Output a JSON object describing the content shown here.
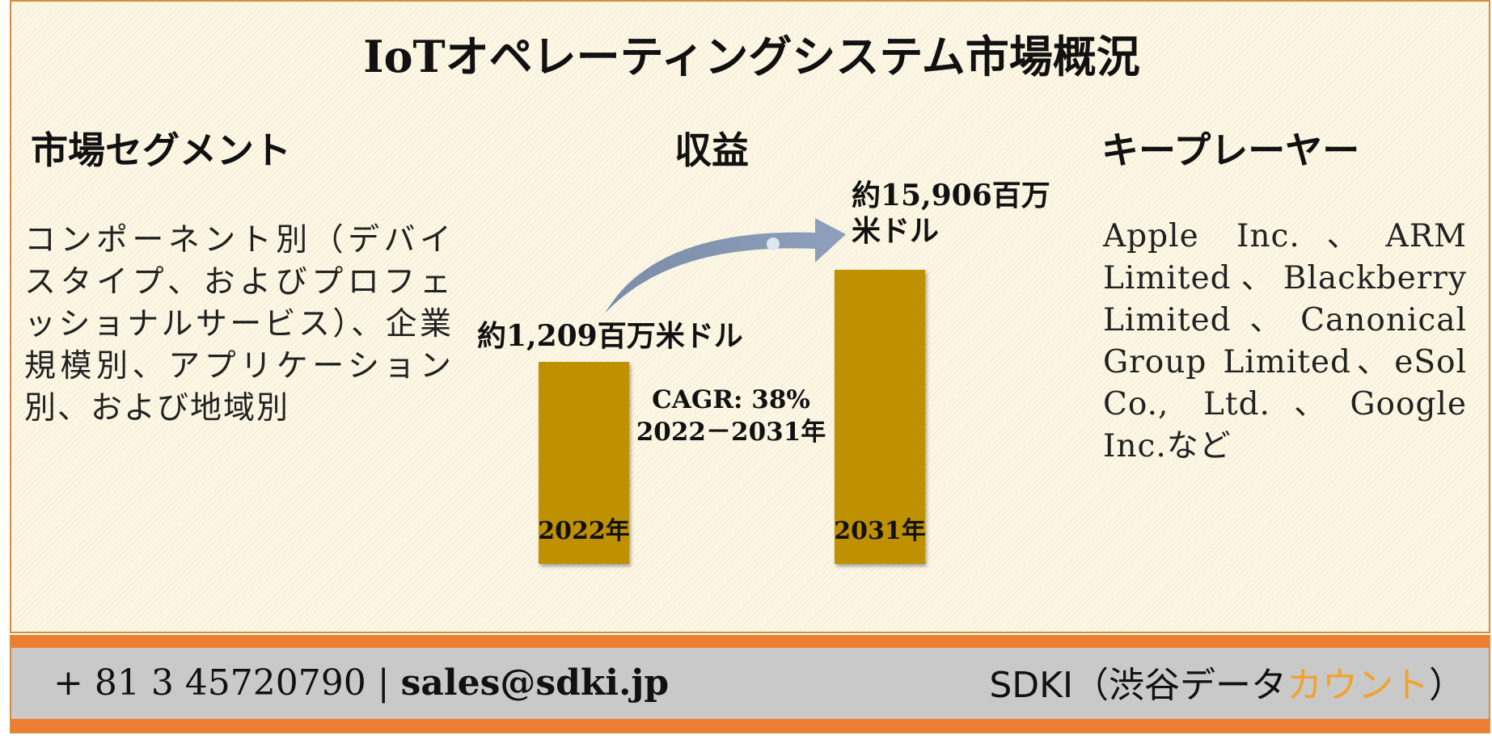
{
  "title": "IoTオペレーティングシステム市場概況",
  "segments": {
    "heading": "市場セグメント",
    "text": "コンポーネント別（デバイスタイプ、およびプロフェッショナルサービス）、企業規模別、アプリケーション別、および地域別"
  },
  "revenue": {
    "heading": "収益",
    "cagr_line1": "CAGR: 38%",
    "cagr_line2": "2022－2031年"
  },
  "key_players": {
    "heading": "キープレーヤー",
    "text": "Apple Inc.、ARM Limited、Blackberry Limited、Canonical Group Limited、eSol Co., Ltd.、Google Inc.など"
  },
  "chart_data": {
    "type": "bar",
    "categories": [
      "2022年",
      "2031年"
    ],
    "values": [
      1209,
      15906
    ],
    "value_labels": [
      [
        "約1,209百万米ドル"
      ],
      [
        "約15,906百万",
        "米ドル"
      ]
    ],
    "bar_color": "#bf9000",
    "arrow_color": "#8497b0"
  },
  "footer": {
    "contact_phone": "+ 81 3 45720790",
    "separator": "|",
    "contact_email": "sales@sdki.jp",
    "brand_prefix": "SDKI（渋谷データ",
    "brand_accent": "カウント",
    "brand_suffix": "）",
    "accent_color": "#f2a22b",
    "band_color": "#ed7d31"
  }
}
